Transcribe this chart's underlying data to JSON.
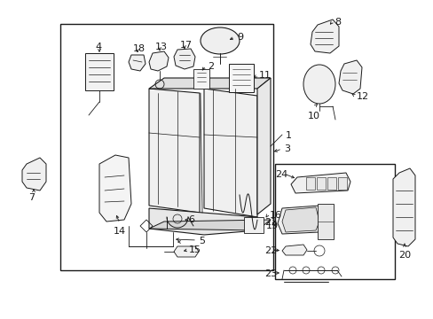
{
  "bg_color": "#ffffff",
  "line_color": "#1a1a1a",
  "fig_width": 4.89,
  "fig_height": 3.6,
  "dpi": 100,
  "font_size": 7.0
}
